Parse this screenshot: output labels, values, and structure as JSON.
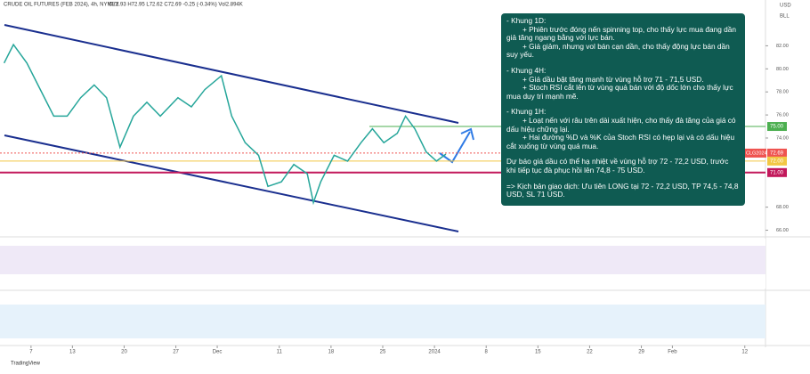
{
  "header": {
    "symbol": "CRUDE OIL FUTURES (FEB 2024), 4h, NYMEX",
    "ohlc": "O72.93 H72.95 L72.62 C72.69 -0.25 (-0.34%) Vol2.894K",
    "currency": "USD",
    "unit": "BLL"
  },
  "chart_data": {
    "type": "line",
    "color": "#26a69a",
    "x": [
      1.4,
      2.3,
      3.6,
      4.9,
      6.2,
      7.5,
      8.8,
      10.1,
      11.3,
      12.6,
      13.9,
      15.2,
      16.5,
      18.2,
      19.5,
      20.8,
      22.4,
      23.4,
      24.7,
      26,
      26.9,
      28.2,
      29.4,
      30.7,
      31.3,
      32,
      33.3,
      34.6,
      35.9,
      37,
      38.1,
      39.4,
      40.2,
      41.1,
      42.2,
      43.2,
      44.1
    ],
    "values": [
      80.5,
      82.1,
      80.5,
      78.2,
      75.9,
      75.9,
      77.5,
      78.6,
      77.5,
      73.2,
      75.9,
      77.1,
      75.9,
      77.5,
      76.7,
      78.2,
      79.4,
      75.9,
      73.6,
      72.5,
      69.8,
      70.2,
      71.7,
      70.9,
      68.4,
      70.2,
      72.5,
      72.0,
      73.6,
      74.8,
      73.6,
      74.4,
      75.9,
      74.8,
      72.8,
      72.0,
      72.6
    ],
    "xlim": [
      1,
      75
    ],
    "ylim": [
      65.5,
      85.2
    ],
    "xticks": [
      {
        "value": 4,
        "label": "7"
      },
      {
        "value": 8,
        "label": "13"
      },
      {
        "value": 13,
        "label": "20"
      },
      {
        "value": 18,
        "label": "27"
      },
      {
        "value": 22,
        "label": "Dec"
      },
      {
        "value": 28,
        "label": "11"
      },
      {
        "value": 33,
        "label": "18"
      },
      {
        "value": 38,
        "label": "25"
      },
      {
        "value": 43,
        "label": "2024"
      },
      {
        "value": 48,
        "label": "8"
      },
      {
        "value": 53,
        "label": "15"
      },
      {
        "value": 58,
        "label": "22"
      },
      {
        "value": 63,
        "label": "29"
      },
      {
        "value": 66,
        "label": "Feb"
      },
      {
        "value": 73,
        "label": "12"
      }
    ],
    "yticks": [
      {
        "value": 82,
        "label": "82.00"
      },
      {
        "value": 80,
        "label": "80.00"
      },
      {
        "value": 78,
        "label": "78.00"
      },
      {
        "value": 76,
        "label": "76.00"
      },
      {
        "value": 74,
        "label": "74.00"
      },
      {
        "value": 68,
        "label": "68.00"
      },
      {
        "value": 66,
        "label": "66.00"
      }
    ],
    "levels": [
      {
        "value": 75,
        "label": "75.00",
        "color": "#4caf50"
      },
      {
        "value": 72.69,
        "label": "72.69",
        "color": "#ef5350"
      },
      {
        "value": 72,
        "label": "72.00",
        "color": "#f2c744"
      },
      {
        "value": 71,
        "label": "71.00",
        "color": "#c2185b"
      }
    ],
    "symbol_tag": "CLG2024"
  },
  "annotation": {
    "lines": [
      "- Khung 1D:",
      "+ Phiên trước đóng nến spinning top, cho thấy  lực mua đang dần giả tăng ngang bằng với lực bán.",
      "+ Giá giảm, nhưng vol bán cạn dần, cho thấy động lực bán dần suy yếu.",
      "- Khung 4H:",
      "+ Giá dầu bật tăng mạnh từ vùng hỗ trợ 71 - 71,5 USD.",
      "+ Stoch RSI cắt lên từ vùng quá bán với độ dốc lớn cho thấy lực mua duy trì mạnh mẽ.",
      "- Khung 1H:",
      "+ Loạt nến với râu trên dài xuất hiện, cho thấy đà tăng của giá có dấu hiệu chững lại.",
      "+ Hai đường %D và %K của Stoch RSI có hẹp lại và có dấu hiệu cắt xuống từ vùng quá mua.",
      "Dự báo giá dầu có thể hạ nhiệt về vùng hỗ trợ 72 - 72,2 USD, trước khi tiếp tục đà phục hồi lên 74,8 - 75 USD.",
      "=> Kịch bản giao dịch: Ưu tiên LONG tại 72 - 72,2 USD, TP 74,5 - 74,8 USD, SL 71 USD."
    ]
  },
  "footer": {
    "brand": "TradingView"
  }
}
